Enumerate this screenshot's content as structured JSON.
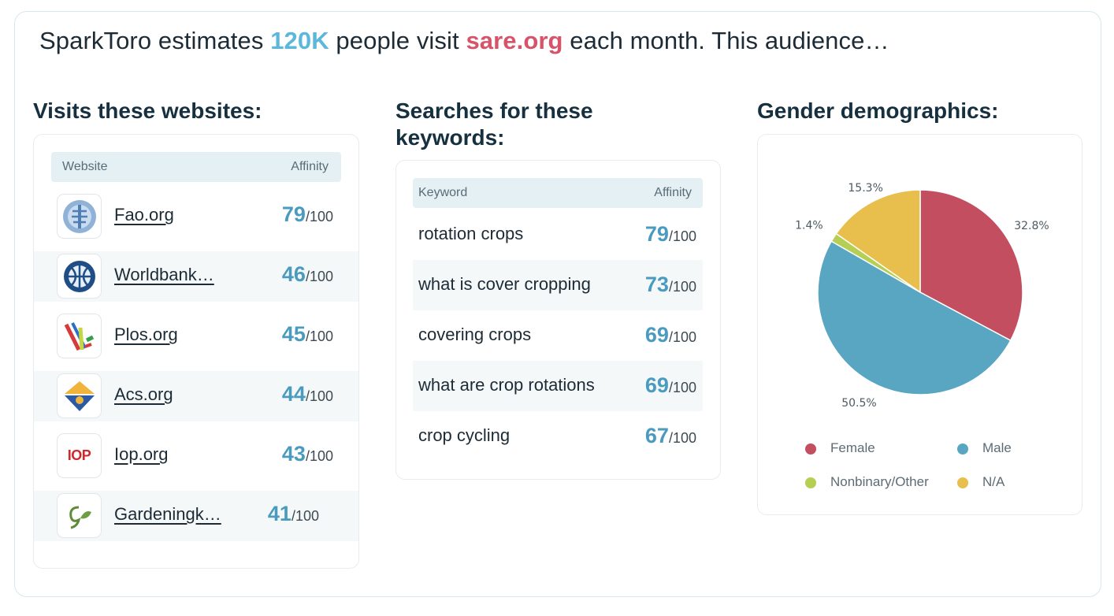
{
  "headline": {
    "prefix": "SparkToro estimates",
    "count": "120K",
    "middle": "people visit",
    "site": "sare.org",
    "suffix": "each month. This audience…"
  },
  "websites": {
    "title": "Visits these websites:",
    "col_website": "Website",
    "col_affinity": "Affinity",
    "rows": [
      {
        "name": "Fao.org",
        "score": "79",
        "max": "/100",
        "icon": "fao-logo-icon"
      },
      {
        "name": "Worldbank…",
        "score": "46",
        "max": "/100",
        "icon": "worldbank-logo-icon"
      },
      {
        "name": "Plos.org",
        "score": "45",
        "max": "/100",
        "icon": "plos-logo-icon"
      },
      {
        "name": "Acs.org",
        "score": "44",
        "max": "/100",
        "icon": "acs-logo-icon"
      },
      {
        "name": "Iop.org",
        "score": "43",
        "max": "/100",
        "icon": "iop-logo-icon"
      },
      {
        "name": "Gardeningk…",
        "score": "41",
        "max": "/100",
        "icon": "gardening-logo-icon"
      }
    ],
    "iop_logo_text": "IOP"
  },
  "keywords": {
    "title": "Searches for these keywords:",
    "col_keyword": "Keyword",
    "col_affinity": "Affinity",
    "rows": [
      {
        "keyword": "rotation crops",
        "score": "79",
        "max": "/100"
      },
      {
        "keyword": "what is cover cropping",
        "score": "73",
        "max": "/100"
      },
      {
        "keyword": "covering crops",
        "score": "69",
        "max": "/100"
      },
      {
        "keyword": "what are crop rotations",
        "score": "69",
        "max": "/100"
      },
      {
        "keyword": "crop cycling",
        "score": "67",
        "max": "/100"
      }
    ]
  },
  "gender": {
    "title": "Gender demographics:"
  },
  "colors": {
    "accent_blue": "#5bb7dc",
    "accent_red": "#d6546a",
    "female": "#c24e5f",
    "male": "#59a6c2",
    "nonbinary": "#b5cf55",
    "na": "#e8be4c"
  },
  "chart_data": {
    "type": "pie",
    "categories": [
      "Female",
      "Male",
      "Nonbinary/Other",
      "N/A"
    ],
    "values": [
      32.8,
      50.5,
      1.4,
      15.3
    ],
    "data_labels": [
      "32.8%",
      "50.5%",
      "1.4%",
      "15.3%"
    ],
    "colors": [
      "#c24e5f",
      "#59a6c2",
      "#b5cf55",
      "#e8be4c"
    ],
    "legend_position": "bottom"
  }
}
